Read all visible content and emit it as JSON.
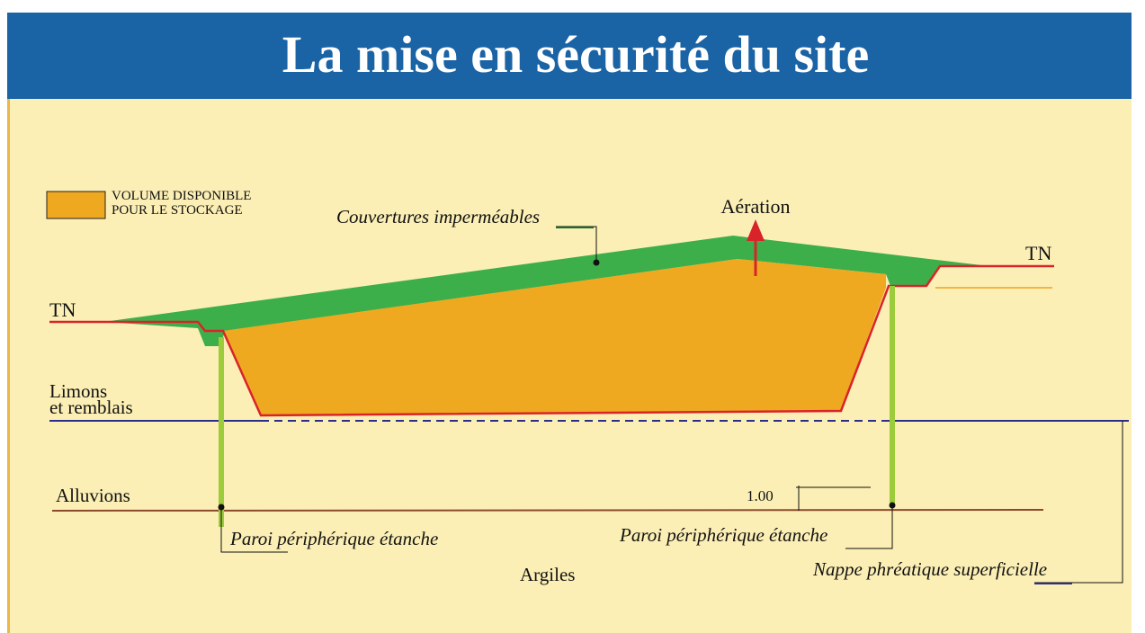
{
  "title": "La mise en sécurité du site",
  "legend": {
    "line1": "VOLUME DISPONIBLE",
    "line2": "POUR LE STOCKAGE"
  },
  "labels": {
    "couvertures": "Couvertures imperméables",
    "aeration": "Aération",
    "tn_left": "TN",
    "tn_right": "TN",
    "limons_line1": "Limons",
    "limons_line2": "et remblais",
    "alluvions": "Alluvions",
    "dimension": "1.00",
    "paroi_left": "Paroi périphérique étanche",
    "paroi_right": "Paroi périphérique étanche",
    "argiles": "Argiles",
    "nappe": "Nappe phréatique superficielle"
  }
}
